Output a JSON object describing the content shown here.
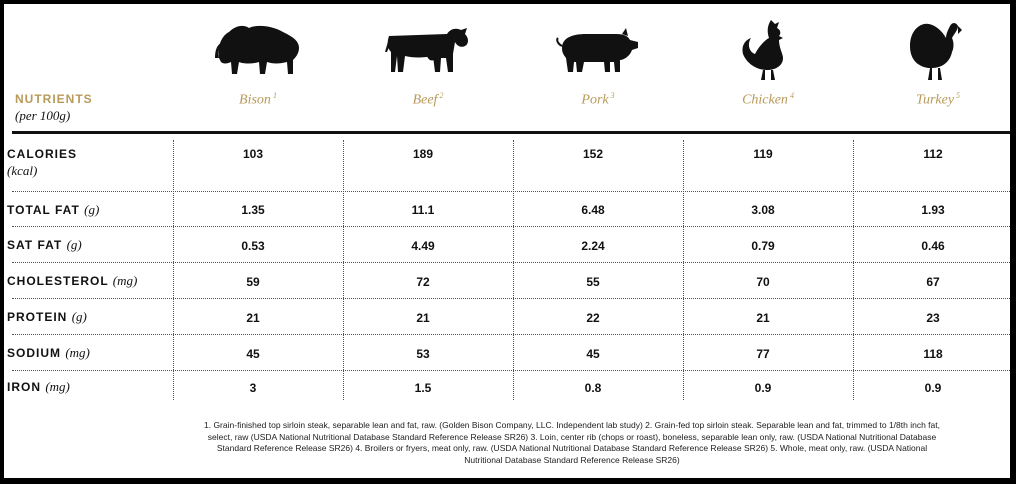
{
  "header": {
    "label": "NUTRIENTS",
    "sublabel": "(per 100g)"
  },
  "animals": [
    {
      "name": "Bison",
      "note": "1",
      "icon": "bison-icon"
    },
    {
      "name": "Beef",
      "note": "2",
      "icon": "cow-icon"
    },
    {
      "name": "Pork",
      "note": "3",
      "icon": "pig-icon"
    },
    {
      "name": "Chicken",
      "note": "4",
      "icon": "chicken-icon"
    },
    {
      "name": "Turkey",
      "note": "5",
      "icon": "turkey-icon"
    }
  ],
  "rows": [
    {
      "label": "CALORIES",
      "unit": "(kcal)",
      "values": [
        "103",
        "189",
        "152",
        "119",
        "112"
      ]
    },
    {
      "label": "TOTAL FAT",
      "unit": "(g)",
      "values": [
        "1.35",
        "11.1",
        "6.48",
        "3.08",
        "1.93"
      ]
    },
    {
      "label": "SAT FAT",
      "unit": "(g)",
      "values": [
        "0.53",
        "4.49",
        "2.24",
        "0.79",
        "0.46"
      ]
    },
    {
      "label": "CHOLESTEROL",
      "unit": "(mg)",
      "values": [
        "59",
        "72",
        "55",
        "70",
        "67"
      ]
    },
    {
      "label": "PROTEIN",
      "unit": "(g)",
      "values": [
        "21",
        "21",
        "22",
        "21",
        "23"
      ]
    },
    {
      "label": "SODIUM",
      "unit": "(mg)",
      "values": [
        "45",
        "53",
        "45",
        "77",
        "118"
      ]
    },
    {
      "label": "IRON",
      "unit": "(mg)",
      "values": [
        "3",
        "1.5",
        "0.8",
        "0.9",
        "0.9"
      ]
    }
  ],
  "footnote": "1. Grain-finished top sirloin steak, separable lean and fat, raw. (Golden Bison Company, LLC. Independent lab study) 2. Grain-fed top sirloin steak. Separable lean and fat, trimmed to 1/8th inch fat, select, raw (USDA National Nutritional Database Standard Reference Release SR26) 3. Loin, center rib (chops or roast), boneless, separable lean only, raw. (USDA National Nutritional Database Standard Reference Release SR26) 4. Broilers or fryers, meat only, raw. (USDA National Nutritional Database Standard Reference Release SR26) 5. Whole, meat only, raw. (USDA National Nutritional Database Standard Reference Release SR26)",
  "colors": {
    "accent": "#b89a5a",
    "text": "#111111",
    "border": "#000000"
  }
}
